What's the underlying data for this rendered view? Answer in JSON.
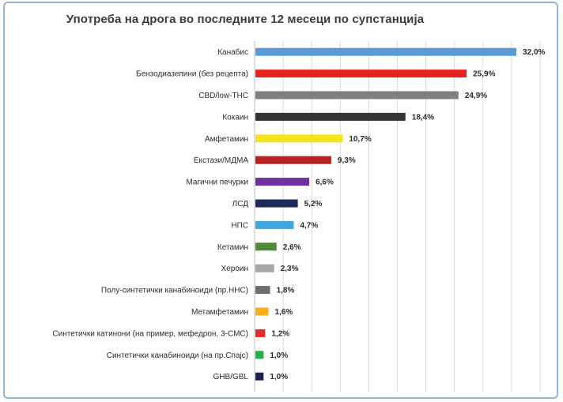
{
  "chart_data": {
    "type": "bar",
    "orientation": "horizontal",
    "title": "Употреба на дрога во последните 12 месеци по супстанција",
    "xlabel": "",
    "ylabel": "",
    "xlim": [
      0,
      35
    ],
    "grid": true,
    "categories": [
      "Канабис",
      "Бензодиазепини (без рецепта)",
      "CBD/low-THC",
      "Кокаин",
      "Амфетамин",
      "Екстази/МДМА",
      "Магични печурки",
      "ЛСД",
      "НПС",
      "Кетамин",
      "Хероин",
      "Полу-синтетички канабиноиди (пр.ННС)",
      "Метамфетамин",
      "Синтетички катинони (на пример, мефедрон, 3-CMC)",
      "Синтетички канабиноиди (на пр.Спајс)",
      "GHB/GBL"
    ],
    "values": [
      32.0,
      25.9,
      24.9,
      18.4,
      10.7,
      9.3,
      6.6,
      5.2,
      4.7,
      2.6,
      2.3,
      1.8,
      1.6,
      1.2,
      1.0,
      1.0
    ],
    "value_labels": [
      "32,0%",
      "25,9%",
      "24,9%",
      "18,4%",
      "10,7%",
      "9,3%",
      "6,6%",
      "5,2%",
      "4,7%",
      "2,6%",
      "2,3%",
      "1,8%",
      "1,6%",
      "1,2%",
      "1,0%",
      "1,0%"
    ],
    "colors": [
      "#5b9bd5",
      "#e8231f",
      "#7f7f7f",
      "#333333",
      "#f5e41d",
      "#b52422",
      "#7030a0",
      "#1f2a5c",
      "#3fa7e0",
      "#4e8a3a",
      "#a6a6a6",
      "#6e6e6e",
      "#f5b21b",
      "#e02c2c",
      "#22b04b",
      "#1a2250"
    ]
  }
}
